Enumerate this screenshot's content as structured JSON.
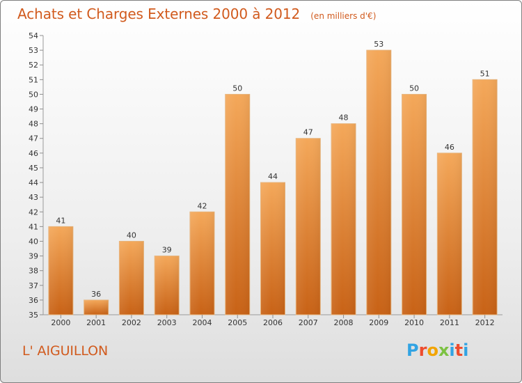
{
  "header": {
    "title": "Achats et Charges Externes 2000 à 2012",
    "subtitle": "(en milliers d'€)"
  },
  "footer": {
    "commune": "L' AIGUILLON"
  },
  "brand": {
    "letters": [
      "P",
      "r",
      "o",
      "x",
      "i",
      "t",
      "i"
    ],
    "colors": [
      "#31a3e3",
      "#ee4c2d",
      "#f2a400",
      "#7cc242",
      "#31a3e3",
      "#ee4c2d",
      "#31a3e3"
    ]
  },
  "chart_data": {
    "type": "bar",
    "title": "Achats et Charges Externes 2000 à 2012",
    "subtitle": "(en milliers d'€)",
    "categories": [
      "2000",
      "2001",
      "2002",
      "2003",
      "2004",
      "2005",
      "2006",
      "2007",
      "2008",
      "2009",
      "2010",
      "2011",
      "2012"
    ],
    "values": [
      41,
      36,
      40,
      39,
      42,
      50,
      44,
      47,
      48,
      53,
      50,
      46,
      51
    ],
    "xlabel": "",
    "ylabel": "",
    "ylim": [
      35,
      54
    ],
    "yticks": [
      35,
      36,
      37,
      38,
      39,
      40,
      41,
      42,
      43,
      44,
      45,
      46,
      47,
      48,
      49,
      50,
      51,
      52,
      53,
      54
    ],
    "grid": false,
    "bar_color_top": "#f4a85a",
    "bar_color_bottom": "#c86216",
    "bar_edge_color": "#e7b37a"
  }
}
